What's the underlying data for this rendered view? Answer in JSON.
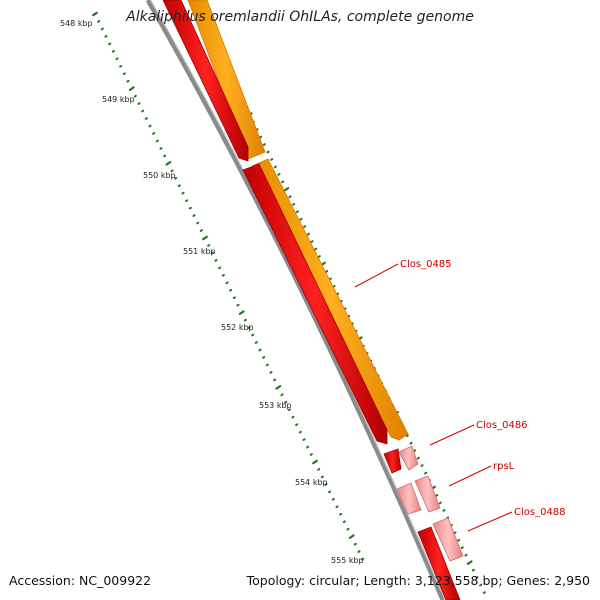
{
  "title": "Alkaliphilus oremlandii OhILAs, complete genome",
  "footer": {
    "accession": "Accession: NC_009922",
    "summary": "Topology: circular; Length: 3,123,558 bp; Genes: 2,950"
  },
  "ticks": [
    "548 kbp",
    "549 kbp",
    "550 kbp",
    "551 kbp",
    "552 kbp",
    "553 kbp",
    "554 kbp",
    "555 kbp"
  ],
  "gene_labels": [
    "Clos_0485",
    "Clos_0486",
    "rpsL",
    "Clos_0488"
  ],
  "colors": {
    "backbone": "#808080",
    "cds_red": "#e00000",
    "cds_orange": "#ff9900",
    "cds_pink": "#f59a9a",
    "tick_green": "#227722",
    "label_red": "#cc0000"
  }
}
